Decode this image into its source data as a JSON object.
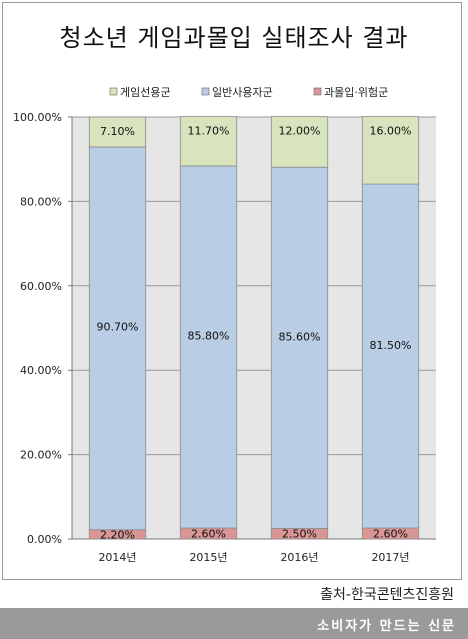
{
  "chart_data": {
    "type": "bar",
    "stacked": true,
    "title": "청소년 게임과몰입 실태조사 결과",
    "categories": [
      "2014년",
      "2015년",
      "2016년",
      "2017년"
    ],
    "series": [
      {
        "name": "과몰입·위험군",
        "values": [
          2.2,
          2.6,
          2.5,
          2.6
        ],
        "labels": [
          "2.20%",
          "2.60%",
          "2.50%",
          "2.60%"
        ],
        "color": "#d99694"
      },
      {
        "name": "일반사용자군",
        "values": [
          90.7,
          85.8,
          85.6,
          81.5
        ],
        "labels": [
          "90.70%",
          "85.80%",
          "85.60%",
          "81.50%"
        ],
        "color": "#b9cde5"
      },
      {
        "name": "게임선용군",
        "values": [
          7.1,
          11.7,
          12.0,
          16.0
        ],
        "labels": [
          "7.10%",
          "11.70%",
          "12.00%",
          "16.00%"
        ],
        "color": "#d7e4bd"
      }
    ],
    "legend_order": [
      "게임선용군",
      "일반사용자군",
      "과몰입·위험군"
    ],
    "legend_position": "top",
    "ylim": [
      0,
      100
    ],
    "yticks": [
      "0.00%",
      "20.00%",
      "40.00%",
      "60.00%",
      "80.00%",
      "100.00%"
    ],
    "grid": true,
    "plot_background": "#e6e6e6"
  },
  "source": "출처-한국콘텐츠진흥원",
  "footer": "소비자가 만드는 신문"
}
